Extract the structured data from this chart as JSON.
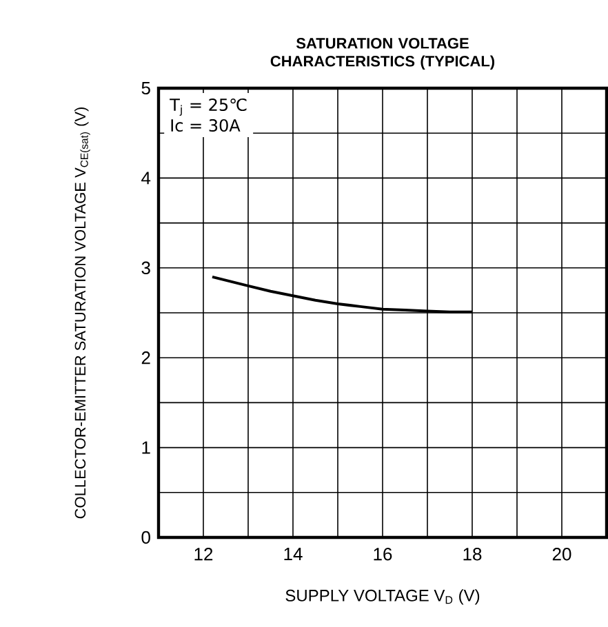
{
  "chart_data": {
    "type": "line",
    "title": "SATURATION VOLTAGE CHARACTERISTICS (TYPICAL)",
    "xlabel": "SUPPLY VOLTAGE V$_{D}$ (V)",
    "ylabel": "COLLECTOR-EMITTER SATURATION VOLTAGE V$_{CE(sat)}$ (V)",
    "annotations": [
      "T$_{j}$ = 25℃",
      "Ic = 30A"
    ],
    "x": [
      12.2,
      12.6,
      13,
      13.5,
      14,
      14.5,
      15,
      15.5,
      16,
      16.5,
      17,
      17.5,
      18
    ],
    "series": [
      {
        "color": "#000000",
        "values": [
          2.9,
          2.85,
          2.8,
          2.74,
          2.69,
          2.64,
          2.6,
          2.57,
          2.54,
          2.53,
          2.52,
          2.51,
          2.51
        ]
      }
    ],
    "xlim": [
      11,
      21
    ],
    "xticks": [
      {
        "value": 11,
        "label": null
      },
      12,
      {
        "value": 13,
        "label": null
      },
      14,
      {
        "value": 15,
        "label": null
      },
      16,
      {
        "value": 17,
        "label": null
      },
      18,
      {
        "value": 19,
        "label": null
      },
      20
    ],
    "ylim": [
      0,
      5
    ],
    "yticks": [
      0,
      {
        "value": 0.5,
        "label": null
      },
      1,
      {
        "value": 1.5,
        "label": null
      },
      2,
      {
        "value": 2.5,
        "label": null
      },
      3,
      {
        "value": 3.5,
        "label": null
      },
      4,
      {
        "value": 4.5,
        "label": null
      },
      5
    ],
    "grid": true
  }
}
